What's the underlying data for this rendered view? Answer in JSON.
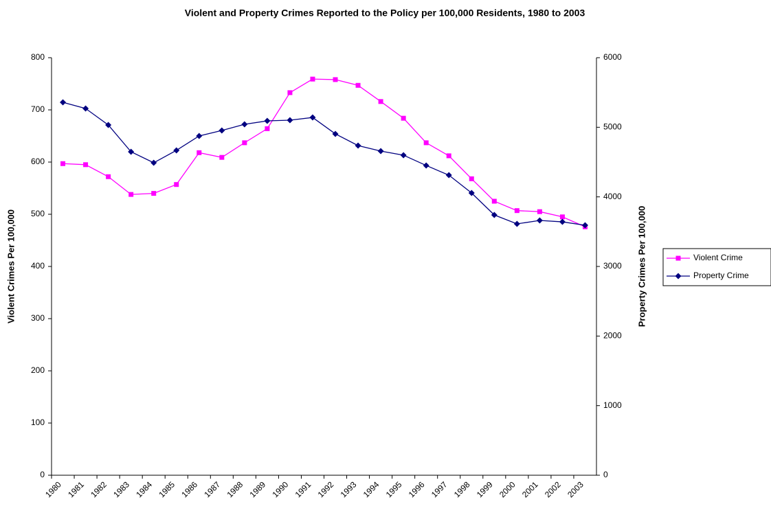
{
  "chart_data": {
    "type": "line",
    "title": "Violent and Property Crimes Reported to the Policy per 100,000 Residents, 1980 to 2003",
    "y_label": "Violent Crimes Per 100,000",
    "y2_label": "Property Crimes Per 100,000",
    "categories": [
      "1980",
      "1981",
      "1982",
      "1983",
      "1984",
      "1985",
      "1986",
      "1987",
      "1988",
      "1989",
      "1990",
      "1991",
      "1992",
      "1993",
      "1994",
      "1995",
      "1996",
      "1997",
      "1998",
      "1999",
      "2000",
      "2001",
      "2002",
      "2003"
    ],
    "series": [
      {
        "name": "Violent Crime",
        "color": "#ff00ff",
        "marker": "square",
        "values": [
          597,
          595,
          572,
          538,
          540,
          557,
          618,
          609,
          637,
          664,
          733,
          759,
          758,
          747,
          716,
          684,
          637,
          612,
          568,
          525,
          507,
          505,
          495,
          476
        ]
      },
      {
        "name": "Property Crime",
        "color": "#000080",
        "marker": "diamond",
        "axis": "y2",
        "values": [
          5358,
          5270,
          5033,
          4648,
          4490,
          4668,
          4875,
          4954,
          5043,
          5092,
          5102,
          5141,
          4905,
          4737,
          4658,
          4599,
          4451,
          4312,
          4056,
          3740,
          3612,
          3661,
          3641,
          3592
        ]
      }
    ],
    "ylim": [
      0,
      800
    ],
    "yticks": [
      0,
      100,
      200,
      300,
      400,
      500,
      600,
      700,
      800
    ],
    "y2lim": [
      0,
      6000
    ],
    "y2ticks": [
      0,
      1000,
      2000,
      3000,
      4000,
      5000,
      6000
    ],
    "grid": false,
    "legend": "right"
  }
}
